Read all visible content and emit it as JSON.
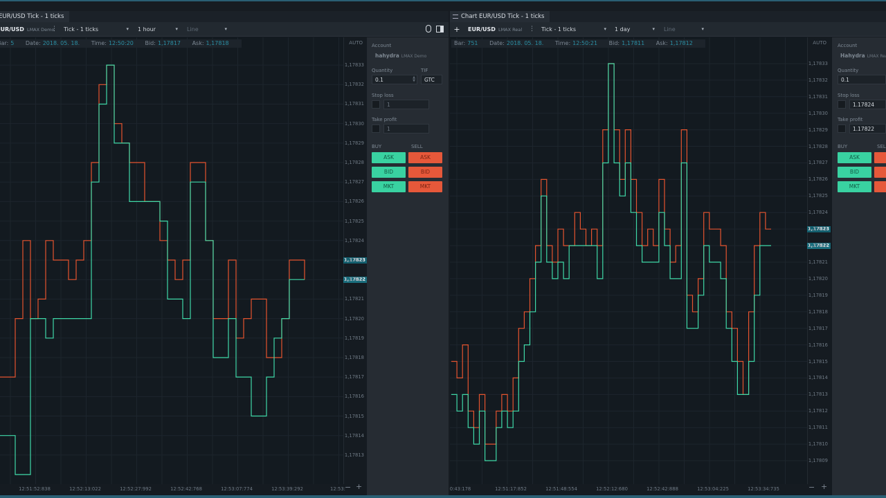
{
  "left": {
    "tab": "EUR/USD Tick - 1 ticks",
    "symbol": "EUR/USD",
    "account_short": "LMAX Demo",
    "chart_type": "Tick - 1 ticks",
    "timeframe": "1 hour",
    "style": "Line",
    "info": {
      "bar": "Bar:",
      "bar_val": "5",
      "date": "Date:",
      "date_val": "2018. 05. 18.",
      "time": "Time:",
      "time_val": "12:50:20",
      "bid": "Bid:",
      "bid_val": "1,17817",
      "ask": "Ask:",
      "ask_val": "1,17818"
    },
    "yaxis": {
      "auto": "AUTO",
      "labels": [
        "1,17833",
        "1,17832",
        "1,17831",
        "1,17830",
        "1,17829",
        "1,17828",
        "1,17827",
        "1,17826",
        "1,17825",
        "1,17824",
        "1,17823",
        "1,17822",
        "1,17821",
        "1,17820",
        "1,17819",
        "1,17818",
        "1,17817",
        "1,17816",
        "1,17815",
        "1,17814",
        "1,17813"
      ],
      "ask_badge": "1,17823",
      "bid_badge": "1,17822"
    },
    "xaxis": [
      "12:51:52:838",
      "12:52:13:022",
      "12:52:27:992",
      "12:52:42:768",
      "12:53:07:774",
      "12:53:39:292",
      "12:53:"
    ],
    "trade": {
      "account_label": "Account",
      "account": "hahydra",
      "account_type": "LMAX Demo",
      "quantity_label": "Quantity",
      "quantity": "0.1",
      "tif_label": "TIF",
      "tif": "GTC",
      "stoploss_label": "Stop loss",
      "stoploss": "1",
      "takeprofit_label": "Take profit",
      "takeprofit": "1",
      "buy_label": "BUY",
      "sell_label": "SELL",
      "ask": "ASK",
      "bid": "BID",
      "mkt": "MKT"
    }
  },
  "right": {
    "tab": "Chart EUR/USD Tick - 1 ticks",
    "symbol": "EUR/USD",
    "account_short": "LMAX Real",
    "chart_type": "Tick - 1 ticks",
    "timeframe": "1 day",
    "style": "Line",
    "info": {
      "bar": "Bar:",
      "bar_val": "751",
      "date": "Date:",
      "date_val": "2018. 05. 18.",
      "time": "Time:",
      "time_val": "12:50:21",
      "bid": "Bid:",
      "bid_val": "1,17811",
      "ask": "Ask:",
      "ask_val": "1,17812"
    },
    "yaxis": {
      "auto": "AUTO",
      "labels": [
        "1,17833",
        "1,17832",
        "1,17831",
        "1,17830",
        "1,17829",
        "1,17828",
        "1,17827",
        "1,17826",
        "1,17825",
        "1,17824",
        "1,17823",
        "1,17822",
        "1,17821",
        "1,17820",
        "1,17819",
        "1,17818",
        "1,17817",
        "1,17816",
        "1,17815",
        "1,17814",
        "1,17813",
        "1,17812",
        "1,17811",
        "1,17810",
        "1,17809"
      ],
      "ask_badge": "1,17823",
      "bid_badge": "1,17822"
    },
    "xaxis": [
      "0:43:178",
      "12:51:17:852",
      "12:51:48:554",
      "12:52:12:680",
      "12:52:42:888",
      "12:53:04:225",
      "12:53:34:735"
    ],
    "trade": {
      "account_label": "Account",
      "account": "Hahydra",
      "account_type": "LMAX Real",
      "quantity_label": "Quantity",
      "quantity": "0.1",
      "stoploss_label": "Stop loss",
      "stoploss": "1.17824",
      "takeprofit_label": "Take profit",
      "takeprofit": "1.17822",
      "buy_label": "BUY",
      "sell_label": "SELL",
      "ask": "ASK",
      "bid": "BID",
      "mkt": "MKT"
    }
  },
  "colors": {
    "bid_line": "#3fd9a8",
    "ask_line": "#e5542f",
    "grid": "#1d252d"
  },
  "chart_data": [
    {
      "type": "line",
      "ylim": [
        1.178125,
        1.178335
      ],
      "series": [
        {
          "values": [
            1.17817,
            1.17817,
            1.1782,
            1.17824,
            1.1782,
            1.17821,
            1.17824,
            1.17823,
            1.17823,
            1.17822,
            1.17823,
            1.17824,
            1.17828,
            1.17832,
            1.17833,
            1.1783,
            1.17829,
            1.17828,
            1.17828,
            1.17826,
            1.17826,
            1.17824,
            1.17823,
            1.17822,
            1.17823,
            1.17828,
            1.17828,
            1.17824,
            1.1782,
            1.1782,
            1.17823,
            1.17819,
            1.1782,
            1.17821,
            1.17821,
            1.17818,
            1.17818,
            1.1782,
            1.17823,
            1.17823,
            1.17822
          ]
        },
        {
          "values": [
            1.17814,
            1.17814,
            1.17812,
            1.17812,
            1.1782,
            1.1782,
            1.17819,
            1.1782,
            1.1782,
            1.1782,
            1.1782,
            1.1782,
            1.17827,
            1.17831,
            1.17833,
            1.17829,
            1.17829,
            1.17826,
            1.17826,
            1.17826,
            1.17826,
            1.17825,
            1.17821,
            1.17821,
            1.1782,
            1.17827,
            1.17827,
            1.17824,
            1.17818,
            1.17818,
            1.1782,
            1.17817,
            1.17817,
            1.17815,
            1.17815,
            1.17817,
            1.17819,
            1.1782,
            1.17822,
            1.17822,
            1.17822
          ]
        }
      ]
    },
    {
      "type": "line",
      "ylim": [
        1.178085,
        1.178335
      ],
      "series": [
        {
          "values": [
            1.17815,
            1.17814,
            1.17816,
            1.17812,
            1.17811,
            1.17813,
            1.1781,
            1.1781,
            1.17812,
            1.17813,
            1.17812,
            1.17814,
            1.17817,
            1.17818,
            1.1782,
            1.17822,
            1.17826,
            1.17822,
            1.17821,
            1.17823,
            1.17822,
            1.17822,
            1.17824,
            1.17823,
            1.17822,
            1.17823,
            1.17822,
            1.17829,
            1.17833,
            1.17829,
            1.17826,
            1.17829,
            1.17826,
            1.17824,
            1.17822,
            1.17823,
            1.17822,
            1.17826,
            1.17823,
            1.17821,
            1.17822,
            1.17829,
            1.17819,
            1.17818,
            1.1782,
            1.17824,
            1.17823,
            1.17823,
            1.17822,
            1.17818,
            1.17817,
            1.17815,
            1.17813,
            1.17818,
            1.17822,
            1.17824,
            1.17823,
            1.17823
          ]
        },
        {
          "values": [
            1.17813,
            1.17812,
            1.17813,
            1.17811,
            1.1781,
            1.17812,
            1.17809,
            1.17809,
            1.17811,
            1.17812,
            1.17811,
            1.17812,
            1.17815,
            1.17816,
            1.17818,
            1.17821,
            1.17825,
            1.17821,
            1.1782,
            1.17821,
            1.1782,
            1.17822,
            1.17822,
            1.17822,
            1.17822,
            1.17822,
            1.1782,
            1.17827,
            1.17833,
            1.17827,
            1.17825,
            1.17827,
            1.17824,
            1.17822,
            1.17821,
            1.17821,
            1.17821,
            1.17824,
            1.17822,
            1.1782,
            1.1782,
            1.17827,
            1.17817,
            1.17817,
            1.17819,
            1.17822,
            1.17821,
            1.17821,
            1.1782,
            1.17817,
            1.17815,
            1.17813,
            1.17813,
            1.17815,
            1.17819,
            1.17822,
            1.17822,
            1.17822
          ]
        }
      ]
    }
  ]
}
